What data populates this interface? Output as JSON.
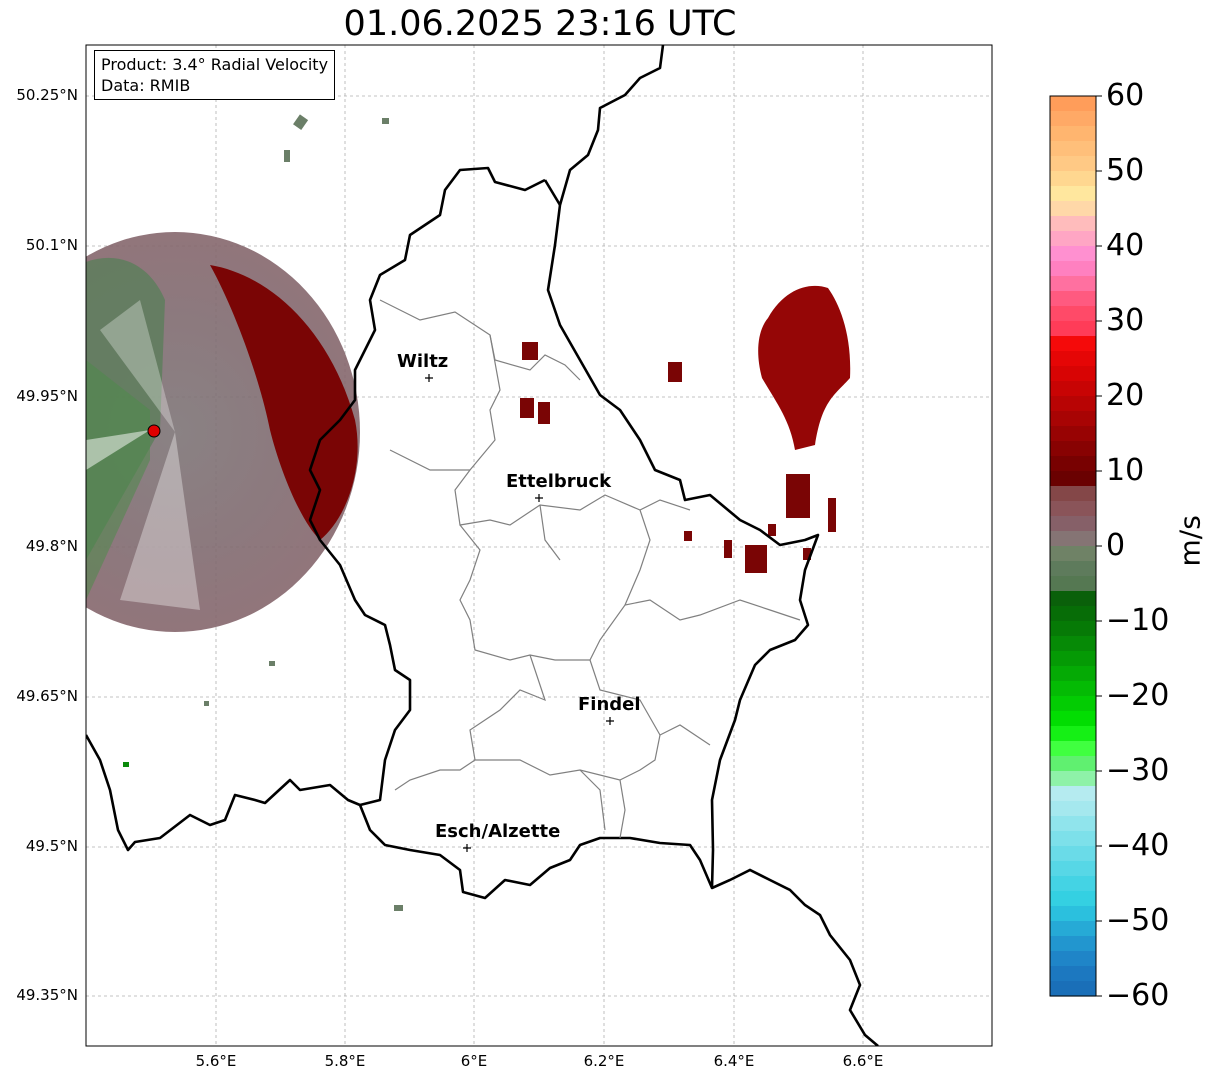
{
  "title": "01.06.2025 23:16 UTC",
  "info": {
    "product": "Product: 3.4° Radial Velocity",
    "data": "Data: RMIB"
  },
  "axes": {
    "lat_ticks": [
      "50.25°N",
      "50.1°N",
      "49.95°N",
      "49.8°N",
      "49.65°N",
      "49.5°N",
      "49.35°N"
    ],
    "lon_ticks": [
      "5.6°E",
      "5.8°E",
      "6°E",
      "6.2°E",
      "6.4°E",
      "6.6°E"
    ]
  },
  "cities": [
    {
      "name": "Wiltz"
    },
    {
      "name": "Ettelbruck"
    },
    {
      "name": "Findel"
    },
    {
      "name": "Esch/Alzette"
    }
  ],
  "colorbar": {
    "label": "m/s",
    "ticks": [
      "60",
      "50",
      "40",
      "30",
      "20",
      "10",
      "0",
      "−10",
      "−20",
      "−30",
      "−40",
      "−50",
      "−60"
    ],
    "min": -60,
    "max": 60
  }
}
